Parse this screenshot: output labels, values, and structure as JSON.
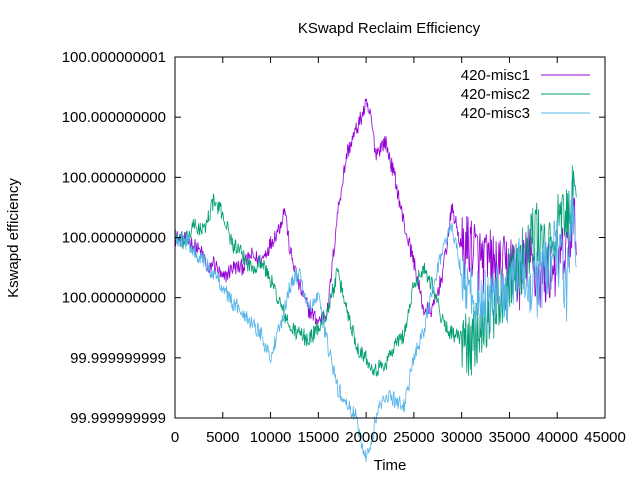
{
  "chart_data": {
    "type": "line",
    "title": "KSwapd Reclaim Efficiency",
    "xlabel": "Time",
    "ylabel": "Kswapd efficiency",
    "xlim": [
      0,
      45000
    ],
    "ylim": [
      99.9999999985,
      100.0000000015
    ],
    "x_ticks": [
      0,
      5000,
      10000,
      15000,
      20000,
      25000,
      30000,
      35000,
      40000,
      45000
    ],
    "x_tick_labels": [
      "0",
      "5000",
      "10000",
      "15000",
      "20000",
      "25000",
      "30000",
      "35000",
      "40000",
      "45000"
    ],
    "y_ticks": [
      99.9999999985,
      99.999999999,
      99.9999999995,
      100.0,
      100.0000000005,
      100.000000001,
      100.0000000015
    ],
    "y_tick_labels": [
      "99.999999999",
      "99.999999999",
      "100.000000000",
      "100.000000000",
      "100.000000000",
      "100.000000000",
      "100.000000001"
    ],
    "y_offset_base": 100.0,
    "legend_position": "top-right",
    "grid": false,
    "series": [
      {
        "name": "420-misc1",
        "color": "#9400d3",
        "x": [
          0,
          1500,
          3000,
          3500,
          4000,
          5000,
          6000,
          7000,
          8000,
          9000,
          10000,
          11000,
          11500,
          12000,
          13000,
          14000,
          15000,
          16000,
          17000,
          18000,
          19000,
          20000,
          20500,
          21000,
          22000,
          23000,
          24000,
          25000,
          26000,
          27000,
          28000,
          29000,
          30000,
          31000,
          32000,
          33000,
          34000,
          35000,
          36000,
          37000,
          38000,
          39000,
          40000,
          41000,
          41500,
          42000
        ],
        "y": [
          0.0,
          -0.03,
          -0.15,
          -0.3,
          -0.2,
          -0.35,
          -0.25,
          -0.25,
          -0.15,
          -0.2,
          -0.05,
          0.1,
          0.25,
          -0.1,
          -0.4,
          -0.6,
          -0.7,
          -0.6,
          0.2,
          0.7,
          0.9,
          1.1,
          1.0,
          0.7,
          0.8,
          0.5,
          0.1,
          -0.2,
          -0.6,
          -0.6,
          -0.3,
          0.25,
          -0.1,
          -0.05,
          -0.2,
          -0.2,
          -0.3,
          -0.2,
          -0.35,
          -0.15,
          -0.35,
          -0.3,
          -0.2,
          -0.15,
          0.1,
          0.1
        ]
      },
      {
        "name": "420-misc2",
        "color": "#009e73",
        "x": [
          0,
          1000,
          2000,
          3000,
          4000,
          5000,
          6000,
          7000,
          8000,
          9000,
          10000,
          11000,
          12000,
          13000,
          14000,
          15000,
          16000,
          17000,
          18000,
          19000,
          20000,
          21000,
          22000,
          23000,
          24000,
          25000,
          26000,
          27000,
          28000,
          29000,
          30000,
          31000,
          32000,
          33000,
          34000,
          35000,
          36000,
          37000,
          38000,
          39000,
          40000,
          41000,
          41500,
          42000
        ],
        "y": [
          0.0,
          -0.05,
          0.1,
          0.05,
          0.3,
          0.2,
          -0.05,
          -0.15,
          -0.25,
          -0.2,
          -0.35,
          -0.55,
          -0.75,
          -0.8,
          -0.85,
          -0.75,
          -0.6,
          -0.3,
          -0.6,
          -0.9,
          -1.0,
          -1.1,
          -1.05,
          -0.9,
          -0.8,
          -0.4,
          -0.25,
          -0.4,
          -0.7,
          -0.8,
          -0.85,
          -0.9,
          -0.7,
          -0.6,
          -0.5,
          -0.3,
          -0.25,
          -0.1,
          0.05,
          -0.2,
          0.1,
          0.15,
          0.35,
          0.2
        ]
      },
      {
        "name": "420-misc3",
        "color": "#56b4e9",
        "x": [
          0,
          1000,
          2000,
          3000,
          4000,
          5000,
          6000,
          7000,
          8000,
          9000,
          10000,
          11000,
          12000,
          13000,
          14000,
          15000,
          16000,
          17000,
          18000,
          19000,
          19500,
          20000,
          20500,
          21000,
          22000,
          23000,
          24000,
          25000,
          26000,
          27000,
          28000,
          29000,
          30000,
          31000,
          32000,
          33000,
          34000,
          35000,
          36000,
          37000,
          38000,
          39000,
          40000,
          41000,
          41500,
          42000
        ],
        "y": [
          0.0,
          -0.02,
          -0.1,
          -0.2,
          -0.3,
          -0.4,
          -0.55,
          -0.6,
          -0.7,
          -0.8,
          -1.0,
          -0.75,
          -0.4,
          -0.3,
          -0.6,
          -0.5,
          -0.9,
          -1.25,
          -1.4,
          -1.5,
          -1.7,
          -1.8,
          -1.75,
          -1.5,
          -1.3,
          -1.35,
          -1.4,
          -1.0,
          -0.8,
          -0.4,
          -0.1,
          0.1,
          -0.3,
          -0.5,
          -0.5,
          -0.6,
          -0.4,
          -0.5,
          -0.25,
          -0.35,
          -0.4,
          -0.2,
          -0.1,
          -0.45,
          0.3,
          -0.2
        ]
      }
    ]
  }
}
